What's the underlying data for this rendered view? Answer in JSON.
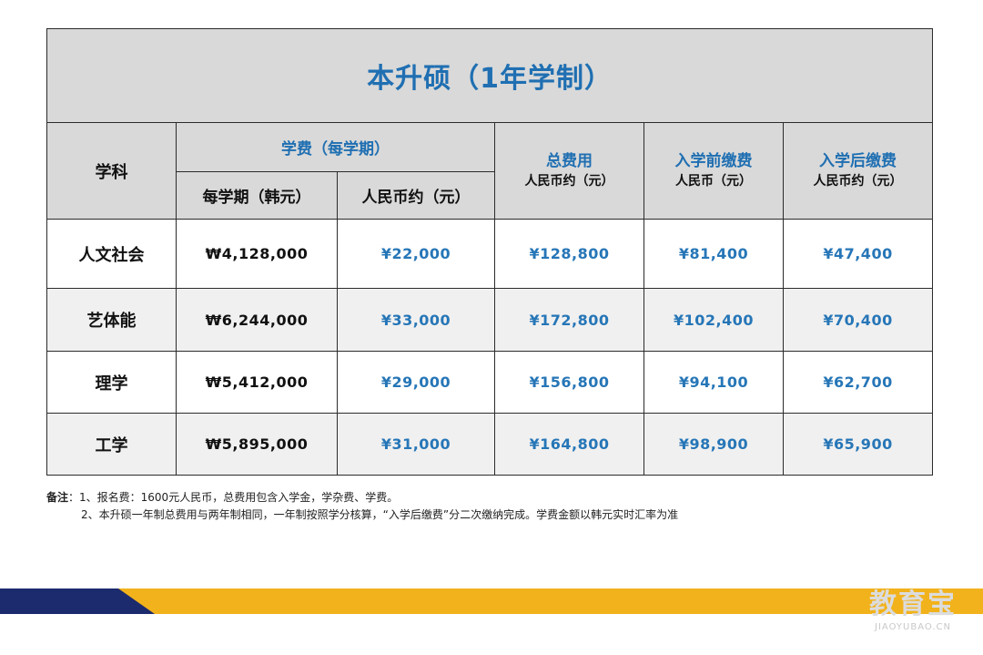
{
  "table": {
    "title": "本升硕（1年学制）",
    "headers": {
      "subject": "学科",
      "tuition_group": "学费（每学期）",
      "per_semester_krw": "每学期（韩元）",
      "approx_cny": "人民币约（元）",
      "total_main": "总费用",
      "total_sub": "人民币约（元）",
      "pre_main": "入学前缴费",
      "pre_sub": "人民币（元）",
      "post_main": "入学后缴费",
      "post_sub": "人民币约（元）"
    },
    "rows": [
      {
        "subject": "人文社会",
        "krw": "₩4,128,000",
        "cny": "¥22,000",
        "total": "¥128,800",
        "pre": "¥81,400",
        "post": "¥47,400"
      },
      {
        "subject": "艺体能",
        "krw": "₩6,244,000",
        "cny": "¥33,000",
        "total": "¥172,800",
        "pre": "¥102,400",
        "post": "¥70,400"
      },
      {
        "subject": "理学",
        "krw": "₩5,412,000",
        "cny": "¥29,000",
        "total": "¥156,800",
        "pre": "¥94,100",
        "post": "¥62,700"
      },
      {
        "subject": "工学",
        "krw": "₩5,895,000",
        "cny": "¥31,000",
        "total": "¥164,800",
        "pre": "¥98,900",
        "post": "¥65,900"
      }
    ]
  },
  "notes": {
    "label": "备注",
    "line1": "：1、报名费：1600元人民币，总费用包含入学金，学杂费、学费。",
    "line2": "2、本升硕一年制总费用与两年制相同，一年制按照学分核算，“入学后缴费”分二次缴纳完成。学费金额以韩元实时汇率为准"
  },
  "watermark": {
    "text": "教育宝",
    "sub": "JIAOYUBAO.CN"
  },
  "colors": {
    "accent_blue": "#1f6fb2",
    "header_gray": "#d9d9d9",
    "band_gold": "#f2b21b",
    "band_navy": "#1c2b6e"
  }
}
